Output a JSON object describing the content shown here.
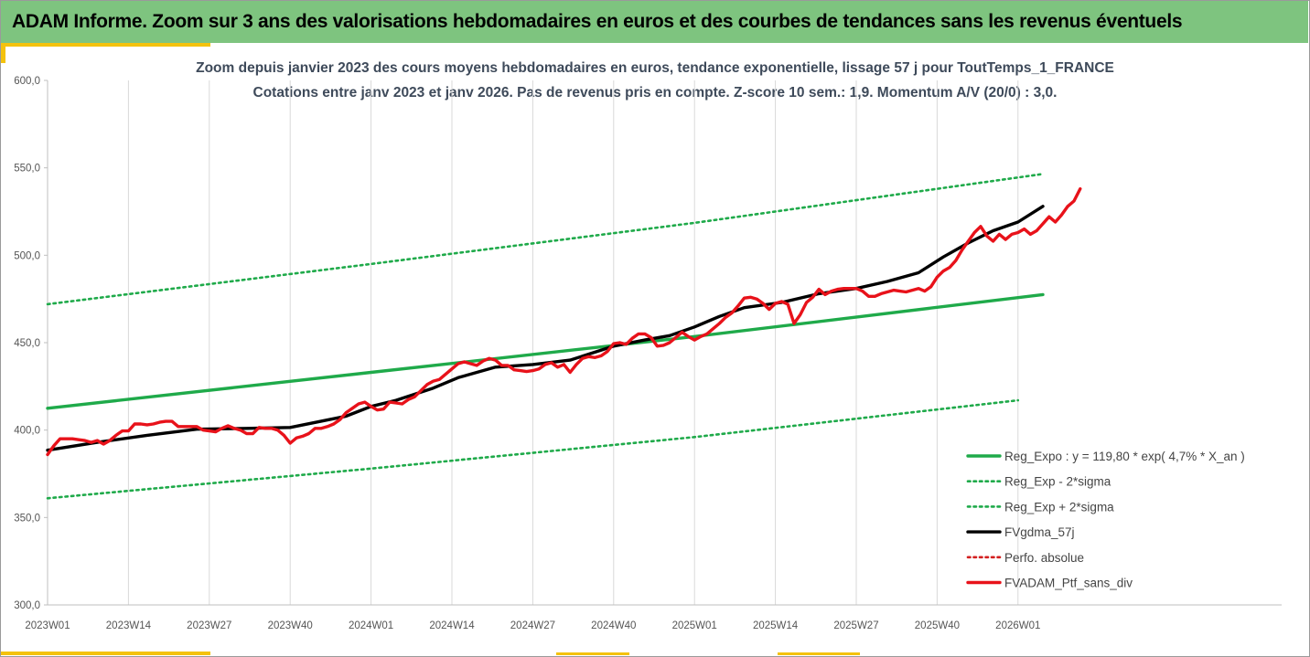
{
  "header": {
    "title": "ADAM Informe. Zoom sur 3 ans des valorisations hebdomadaires en euros et des courbes de tendances sans les revenus éventuels"
  },
  "colors": {
    "banner": "#7ec47f",
    "accent": "#f4c20d",
    "expo": "#1faa4a",
    "gdma": "#000000",
    "ptf": "#e8121a",
    "perfo": "#d32020"
  },
  "chart_data": {
    "type": "line",
    "title_line1": "Zoom depuis janvier 2023 des cours moyens hebdomadaires  en euros, tendance exponentielle, lissage 57 j pour ToutTemps_1_FRANCE",
    "title_line2": "Cotations entre janv 2023 et janv 2026. Pas de revenus pris en compte. Z-score 10 sem.: 1,9. Momentum A/V (20/0) : 3,0.",
    "ylim": [
      300,
      600
    ],
    "yticks": [
      "300,0",
      "350,0",
      "400,0",
      "450,0",
      "500,0",
      "550,0",
      "600,0"
    ],
    "ytick_values": [
      300,
      350,
      400,
      450,
      500,
      550,
      600
    ],
    "xlim": [
      0,
      160
    ],
    "x_tick_labels": [
      "2023W01",
      "2023W14",
      "2023W27",
      "2023W40",
      "2024W01",
      "2024W14",
      "2024W27",
      "2024W40",
      "2025W01",
      "2025W14",
      "2025W27",
      "2025W40",
      "2026W01"
    ],
    "x_tick_positions": [
      0,
      13,
      26,
      39,
      52,
      65,
      78,
      91,
      104,
      117,
      130,
      143,
      156
    ],
    "grid": "vertical",
    "legend_position": "bottom-right",
    "series": [
      {
        "name": "Reg_Expo : y = 119,80 * exp( 4,7% *  X_an )",
        "style": "solid-thick",
        "color": "#1faa4a",
        "points": [
          [
            0,
            412.5
          ],
          [
            52,
            433
          ],
          [
            104,
            453.5
          ],
          [
            160,
            477.5
          ]
        ]
      },
      {
        "name": "Reg_Exp - 2*sigma",
        "style": "dotted",
        "color": "#1faa4a",
        "points": [
          [
            0,
            361
          ],
          [
            52,
            378
          ],
          [
            104,
            396
          ],
          [
            156,
            417
          ]
        ]
      },
      {
        "name": "Reg_Exp + 2*sigma",
        "style": "dotted",
        "color": "#1faa4a",
        "points": [
          [
            0,
            472
          ],
          [
            52,
            495
          ],
          [
            104,
            518.5
          ],
          [
            160,
            546.5
          ]
        ]
      },
      {
        "name": "FVgdma_57j",
        "style": "solid-thick",
        "color": "#000000",
        "points": [
          [
            0,
            388.5
          ],
          [
            8,
            393
          ],
          [
            16,
            397
          ],
          [
            24,
            400.5
          ],
          [
            32,
            401
          ],
          [
            39,
            401.5
          ],
          [
            48,
            408
          ],
          [
            52,
            413.5
          ],
          [
            56,
            417
          ],
          [
            62,
            424
          ],
          [
            66,
            430
          ],
          [
            72,
            436
          ],
          [
            78,
            437.5
          ],
          [
            84,
            440
          ],
          [
            91,
            448
          ],
          [
            96,
            451.5
          ],
          [
            100,
            454
          ],
          [
            104,
            459
          ],
          [
            108,
            465
          ],
          [
            112,
            470
          ],
          [
            118,
            473
          ],
          [
            124,
            478
          ],
          [
            130,
            481
          ],
          [
            135,
            485
          ],
          [
            140,
            490
          ],
          [
            144,
            499
          ],
          [
            148,
            507
          ],
          [
            152,
            514
          ],
          [
            156,
            519
          ],
          [
            160,
            528
          ]
        ]
      },
      {
        "name": "Perfo. absolue",
        "style": "dotted",
        "color": "#d32020",
        "points": []
      },
      {
        "name": "FVADAM_Ptf_sans_div",
        "style": "solid-thick",
        "color": "#e8121a",
        "points": [
          [
            0,
            386
          ],
          [
            1,
            391
          ],
          [
            2,
            395
          ],
          [
            3,
            395
          ],
          [
            4,
            395
          ],
          [
            5,
            394.5
          ],
          [
            6,
            394
          ],
          [
            7,
            393
          ],
          [
            8,
            394
          ],
          [
            9,
            392
          ],
          [
            10,
            394
          ],
          [
            11,
            397
          ],
          [
            12,
            399.5
          ],
          [
            13,
            399.5
          ],
          [
            14,
            403.5
          ],
          [
            15,
            403.5
          ],
          [
            16,
            403
          ],
          [
            17,
            403.5
          ],
          [
            18,
            404.5
          ],
          [
            19,
            405
          ],
          [
            20,
            405
          ],
          [
            21,
            402
          ],
          [
            22,
            402
          ],
          [
            23,
            402
          ],
          [
            24,
            402
          ],
          [
            25,
            400
          ],
          [
            26,
            399.5
          ],
          [
            27,
            399
          ],
          [
            28,
            401
          ],
          [
            29,
            402.5
          ],
          [
            30,
            401
          ],
          [
            31,
            400
          ],
          [
            32,
            398
          ],
          [
            33,
            398
          ],
          [
            34,
            401.5
          ],
          [
            35,
            401
          ],
          [
            36,
            401
          ],
          [
            37,
            400
          ],
          [
            38,
            397
          ],
          [
            39,
            392.5
          ],
          [
            40,
            395.5
          ],
          [
            41,
            396.5
          ],
          [
            42,
            398
          ],
          [
            43,
            401
          ],
          [
            44,
            401
          ],
          [
            45,
            402
          ],
          [
            46,
            403.5
          ],
          [
            47,
            406
          ],
          [
            48,
            410
          ],
          [
            49,
            412.5
          ],
          [
            50,
            415
          ],
          [
            51,
            416
          ],
          [
            52,
            413.5
          ],
          [
            53,
            411.5
          ],
          [
            54,
            412
          ],
          [
            55,
            416
          ],
          [
            56,
            415.5
          ],
          [
            57,
            415
          ],
          [
            58,
            417.5
          ],
          [
            59,
            419
          ],
          [
            60,
            422.5
          ],
          [
            61,
            426
          ],
          [
            62,
            428
          ],
          [
            63,
            429
          ],
          [
            64,
            432
          ],
          [
            65,
            435
          ],
          [
            66,
            438
          ],
          [
            67,
            439
          ],
          [
            68,
            438
          ],
          [
            69,
            437
          ],
          [
            70,
            439.5
          ],
          [
            71,
            441
          ],
          [
            72,
            440
          ],
          [
            73,
            437
          ],
          [
            74,
            437
          ],
          [
            75,
            434.5
          ],
          [
            76,
            434
          ],
          [
            77,
            433.5
          ],
          [
            78,
            434
          ],
          [
            79,
            435
          ],
          [
            80,
            437.5
          ],
          [
            81,
            438.5
          ],
          [
            82,
            436
          ],
          [
            83,
            437.5
          ],
          [
            84,
            433
          ],
          [
            85,
            437.5
          ],
          [
            86,
            441
          ],
          [
            87,
            442
          ],
          [
            88,
            441.5
          ],
          [
            89,
            442.5
          ],
          [
            90,
            445
          ],
          [
            91,
            449.5
          ],
          [
            92,
            450
          ],
          [
            93,
            449
          ],
          [
            94,
            452.5
          ],
          [
            95,
            455
          ],
          [
            96,
            455
          ],
          [
            97,
            453
          ],
          [
            98,
            448
          ],
          [
            99,
            448.5
          ],
          [
            100,
            450
          ],
          [
            101,
            453
          ],
          [
            102,
            456
          ],
          [
            103,
            453.5
          ],
          [
            104,
            451.5
          ],
          [
            105,
            453.5
          ],
          [
            106,
            455
          ],
          [
            107,
            458
          ],
          [
            108,
            461
          ],
          [
            109,
            464.5
          ],
          [
            110,
            467
          ],
          [
            111,
            471
          ],
          [
            112,
            475.5
          ],
          [
            113,
            476
          ],
          [
            114,
            475
          ],
          [
            115,
            472.5
          ],
          [
            116,
            469
          ],
          [
            117,
            472.5
          ],
          [
            118,
            473.5
          ],
          [
            119,
            472
          ],
          [
            120,
            461
          ],
          [
            121,
            466
          ],
          [
            122,
            473
          ],
          [
            123,
            476
          ],
          [
            124,
            480.5
          ],
          [
            125,
            477.5
          ],
          [
            126,
            479.5
          ],
          [
            127,
            480.5
          ],
          [
            128,
            481
          ],
          [
            129,
            481
          ],
          [
            130,
            481
          ],
          [
            131,
            479.5
          ],
          [
            132,
            476.5
          ],
          [
            133,
            476.5
          ],
          [
            134,
            478
          ],
          [
            135,
            479
          ],
          [
            136,
            480
          ],
          [
            137,
            479.5
          ],
          [
            138,
            479
          ],
          [
            139,
            480
          ],
          [
            140,
            481
          ],
          [
            141,
            479.5
          ],
          [
            142,
            482
          ],
          [
            143,
            487.5
          ],
          [
            144,
            491
          ],
          [
            145,
            493
          ],
          [
            146,
            497
          ],
          [
            147,
            503
          ],
          [
            148,
            508
          ],
          [
            149,
            513
          ],
          [
            150,
            516.5
          ],
          [
            151,
            511
          ],
          [
            152,
            508
          ],
          [
            153,
            512
          ],
          [
            154,
            509
          ],
          [
            155,
            512
          ],
          [
            156,
            513
          ],
          [
            157,
            515
          ],
          [
            158,
            512
          ],
          [
            159,
            514
          ],
          [
            160,
            518
          ],
          [
            161,
            522
          ],
          [
            162,
            519
          ],
          [
            163,
            523
          ],
          [
            164,
            528
          ],
          [
            165,
            531
          ],
          [
            166,
            538
          ]
        ]
      }
    ]
  }
}
